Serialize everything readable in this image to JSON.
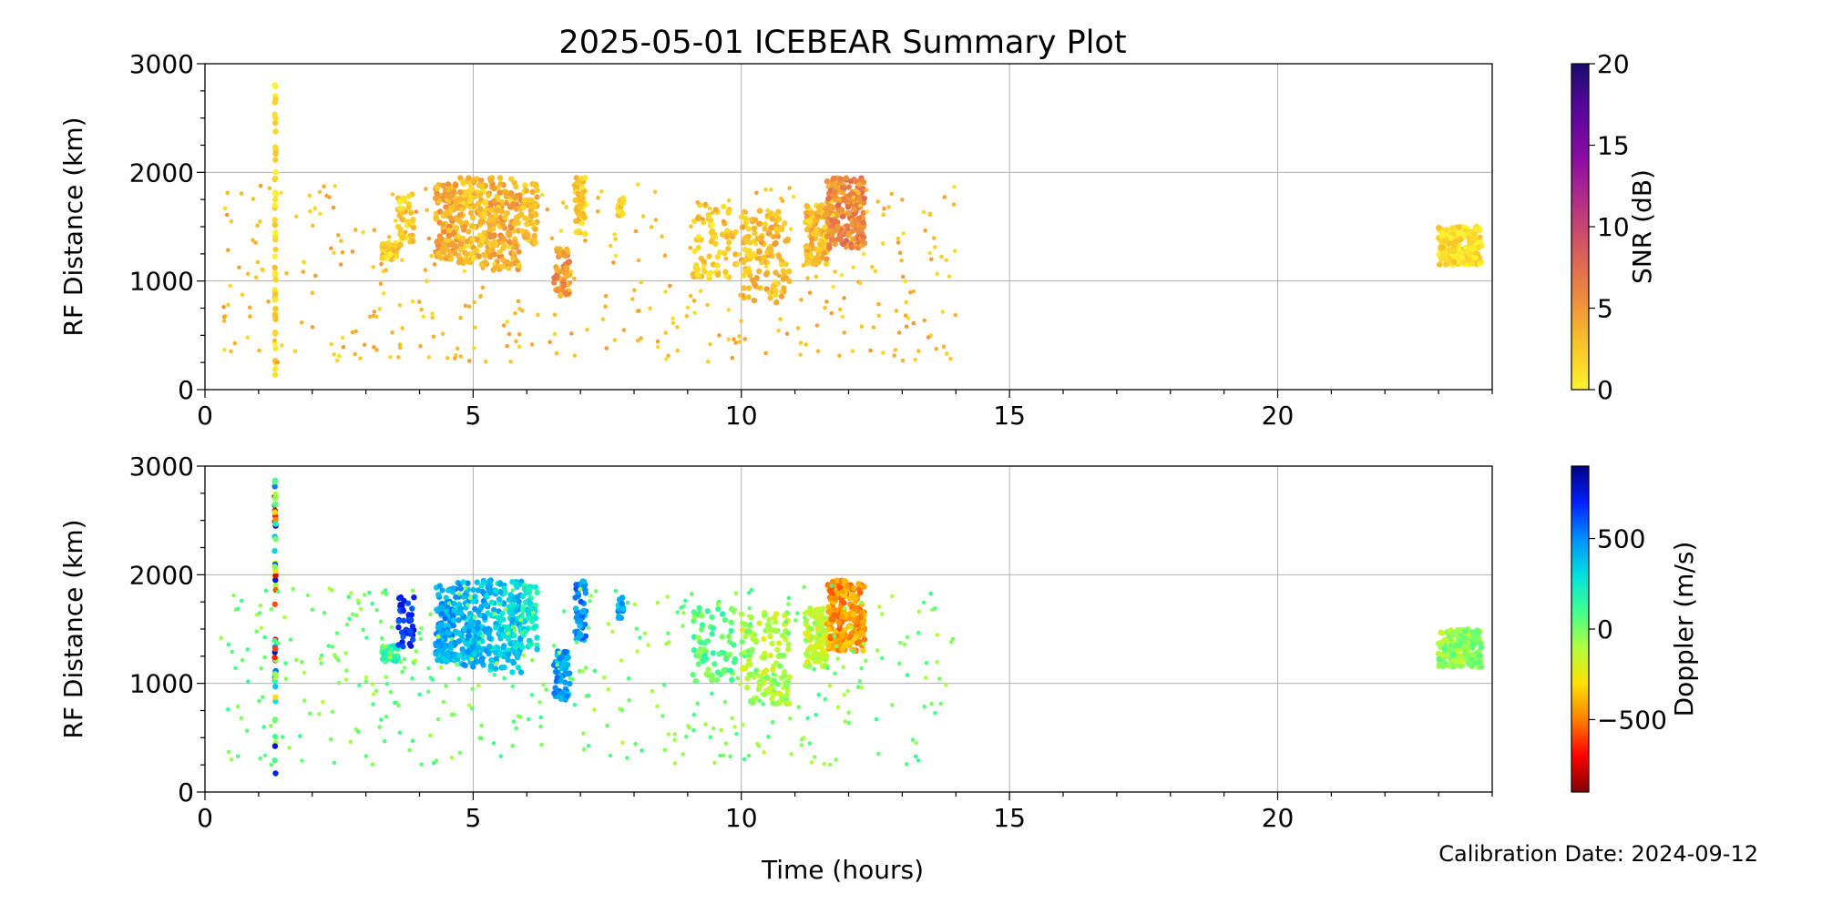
{
  "chart_data": {
    "type": "scatter",
    "title": "2025-05-01 ICEBEAR Summary Plot",
    "xlabel": "Time (hours)",
    "footer": "Calibration Date: 2024-09-12",
    "xlim": [
      0,
      24
    ],
    "x_ticks": [
      0,
      5,
      10,
      15,
      20
    ],
    "grid": true,
    "panels": [
      {
        "id": "snr",
        "ylabel": "RF Distance (km)",
        "ylim": [
          0,
          3000
        ],
        "y_ticks": [
          0,
          1000,
          2000,
          3000
        ],
        "colorbar": {
          "label": "SNR (dB)",
          "range": [
            0,
            20
          ],
          "ticks": [
            0,
            5,
            10,
            15,
            20
          ],
          "tick_labels": [
            "0",
            "5",
            "10",
            "15",
            "20"
          ],
          "colormap": [
            "#fcf22f",
            "#f8c22a",
            "#ef8a3c",
            "#da5a5e",
            "#b92f86",
            "#8b0aa5",
            "#5a06a0",
            "#1a0b6e"
          ]
        }
      },
      {
        "id": "doppler",
        "ylabel": "RF Distance (km)",
        "ylim": [
          0,
          3000
        ],
        "y_ticks": [
          0,
          1000,
          2000,
          3000
        ],
        "colorbar": {
          "label": "Doppler (m/s)",
          "range": [
            -900,
            900
          ],
          "ticks": [
            -500,
            0,
            500
          ],
          "tick_labels": [
            "−500",
            "0",
            "500"
          ],
          "colormap": [
            "#800000",
            "#ff0000",
            "#ff8000",
            "#ffe000",
            "#b0ff40",
            "#40ff90",
            "#00e0e0",
            "#0090ff",
            "#0020ff",
            "#000080"
          ]
        }
      }
    ],
    "clusters": [
      {
        "t": [
          1.3,
          1.32
        ],
        "r": [
          100,
          2900
        ],
        "n": 55,
        "snr": 1,
        "dop_panel2": "mixed"
      },
      {
        "t": [
          3.3,
          3.6
        ],
        "r": [
          1200,
          1350
        ],
        "n": 60,
        "snr": 2,
        "dop": 150
      },
      {
        "t": [
          3.6,
          3.9
        ],
        "r": [
          1300,
          1800
        ],
        "n": 40,
        "snr": 2,
        "dop": 700
      },
      {
        "t": [
          4.3,
          4.7
        ],
        "r": [
          1200,
          1900
        ],
        "n": 130,
        "snr": 4,
        "dop": 450
      },
      {
        "t": [
          4.7,
          5.3
        ],
        "r": [
          1150,
          1950
        ],
        "n": 160,
        "snr": 3,
        "dop": 400
      },
      {
        "t": [
          5.3,
          5.9
        ],
        "r": [
          1100,
          1950
        ],
        "n": 160,
        "snr": 4,
        "dop": 350
      },
      {
        "t": [
          5.9,
          6.2
        ],
        "r": [
          1300,
          1900
        ],
        "n": 60,
        "snr": 3,
        "dop": 250
      },
      {
        "t": [
          6.5,
          6.8
        ],
        "r": [
          850,
          1300
        ],
        "n": 60,
        "snr": 5,
        "dop": 450
      },
      {
        "t": [
          6.9,
          7.1
        ],
        "r": [
          1400,
          1950
        ],
        "n": 50,
        "snr": 2,
        "dop": 500
      },
      {
        "t": [
          7.7,
          7.8
        ],
        "r": [
          1600,
          1800
        ],
        "n": 20,
        "snr": 2,
        "dop": 450
      },
      {
        "t": [
          9.1,
          9.9
        ],
        "r": [
          1000,
          1700
        ],
        "n": 70,
        "snr": 2,
        "dop": 50
      },
      {
        "t": [
          10.0,
          10.9
        ],
        "r": [
          800,
          1650
        ],
        "n": 130,
        "snr": 3,
        "dop": -100
      },
      {
        "t": [
          11.2,
          11.6
        ],
        "r": [
          1150,
          1700
        ],
        "n": 110,
        "snr": 3,
        "dop": -150
      },
      {
        "t": [
          11.6,
          12.3
        ],
        "r": [
          1300,
          1950
        ],
        "n": 230,
        "snr": 6,
        "dop": -450
      },
      {
        "t": [
          23.0,
          23.8
        ],
        "r": [
          1150,
          1500
        ],
        "n": 220,
        "snr": 1,
        "dop": -50
      },
      {
        "t": [
          0.3,
          14.0
        ],
        "r": [
          250,
          1900
        ],
        "n": 420,
        "snr": 3,
        "dop": 0,
        "sparse": true
      }
    ]
  }
}
